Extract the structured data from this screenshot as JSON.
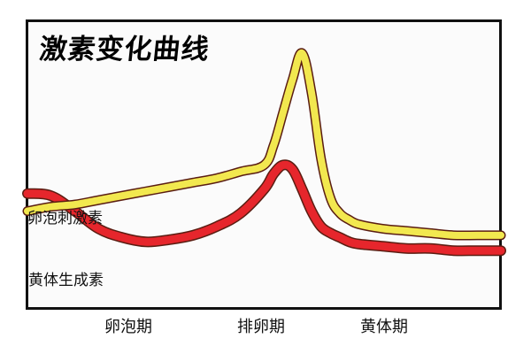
{
  "title": "激素变化曲线",
  "chart_data": {
    "type": "line",
    "title": "激素变化曲线",
    "x": [
      0,
      0.05,
      0.1,
      0.15,
      0.2,
      0.25,
      0.3,
      0.35,
      0.4,
      0.45,
      0.5,
      0.52,
      0.54,
      0.56,
      0.58,
      0.6,
      0.62,
      0.64,
      0.66,
      0.68,
      0.7,
      0.75,
      0.8,
      0.85,
      0.9,
      0.95,
      1.0
    ],
    "categories": [
      "卵泡期",
      "排卵期",
      "黄体期"
    ],
    "series": [
      {
        "name": "卵泡刺激素",
        "color": "#f2e84f",
        "values": [
          0.28,
          0.3,
          0.31,
          0.33,
          0.35,
          0.37,
          0.39,
          0.41,
          0.43,
          0.46,
          0.49,
          0.58,
          0.73,
          0.88,
          1.0,
          0.82,
          0.52,
          0.34,
          0.27,
          0.24,
          0.22,
          0.2,
          0.19,
          0.18,
          0.17,
          0.17,
          0.17
        ]
      },
      {
        "name": "黄体生成素",
        "color": "#e6262c",
        "values": [
          0.36,
          0.35,
          0.28,
          0.2,
          0.16,
          0.14,
          0.15,
          0.17,
          0.21,
          0.27,
          0.38,
          0.45,
          0.49,
          0.47,
          0.38,
          0.28,
          0.21,
          0.18,
          0.16,
          0.14,
          0.13,
          0.12,
          0.11,
          0.11,
          0.1,
          0.1,
          0.1
        ]
      }
    ],
    "xlabel": "",
    "ylabel": "",
    "grid": false
  }
}
